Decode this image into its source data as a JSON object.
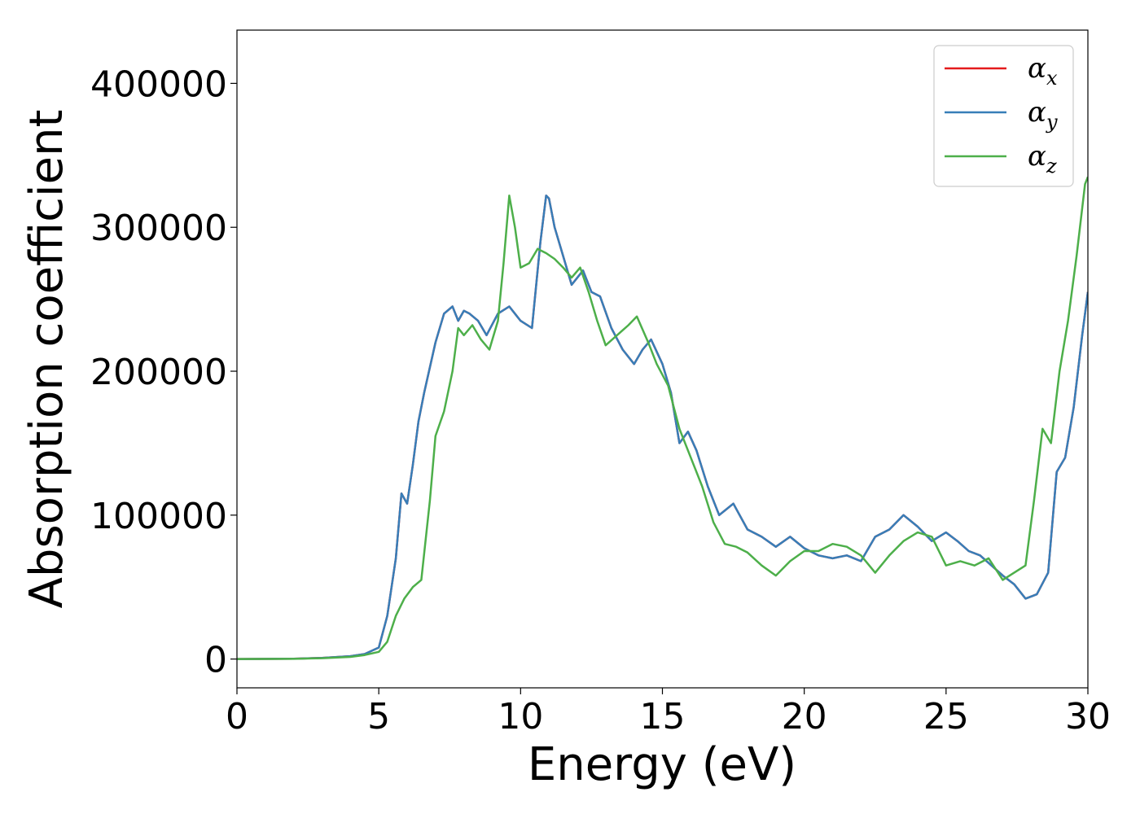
{
  "chart_data": {
    "type": "line",
    "title": "",
    "xlabel": "Energy (eV)",
    "ylabel": "Absorption coefficient",
    "xlim": [
      0,
      30
    ],
    "ylim": [
      -20000,
      437000
    ],
    "xticks": [
      0,
      5,
      10,
      15,
      20,
      25,
      30
    ],
    "xtick_labels": [
      "0",
      "5",
      "10",
      "15",
      "20",
      "25",
      "30"
    ],
    "yticks": [
      0,
      100000,
      200000,
      300000,
      400000
    ],
    "ytick_labels": [
      "0",
      "100000",
      "200000",
      "300000",
      "400000"
    ],
    "grid": false,
    "legend_position": "top-right",
    "series": [
      {
        "name": "α",
        "subscript": "x",
        "color": "#e41a1c",
        "x": [
          0,
          2,
          3,
          4,
          4.5,
          5,
          5.3,
          5.6,
          5.8,
          6.0,
          6.2,
          6.4,
          6.6,
          7.0,
          7.3,
          7.6,
          7.8,
          8.0,
          8.2,
          8.5,
          8.8,
          9.2,
          9.6,
          10.0,
          10.4,
          10.7,
          10.9,
          11.0,
          11.2,
          11.5,
          11.8,
          12.2,
          12.5,
          12.8,
          13.2,
          13.6,
          14.0,
          14.3,
          14.6,
          15.0,
          15.3,
          15.6,
          15.9,
          16.2,
          16.6,
          17.0,
          17.5,
          18.0,
          18.5,
          19.0,
          19.5,
          20.0,
          20.5,
          21.0,
          21.5,
          22.0,
          22.5,
          23.0,
          23.5,
          24.0,
          24.5,
          25.0,
          25.4,
          25.8,
          26.2,
          26.6,
          27.0,
          27.4,
          27.8,
          28.2,
          28.6,
          28.9,
          29.2,
          29.5,
          29.8,
          30.0
        ],
        "y": [
          0,
          200,
          800,
          2000,
          3500,
          8000,
          30000,
          70000,
          115000,
          108000,
          135000,
          165000,
          185000,
          220000,
          240000,
          245000,
          235000,
          242000,
          240000,
          235000,
          225000,
          240000,
          245000,
          235000,
          230000,
          290000,
          322000,
          320000,
          300000,
          280000,
          260000,
          270000,
          255000,
          252000,
          230000,
          215000,
          205000,
          215000,
          222000,
          205000,
          185000,
          150000,
          158000,
          145000,
          120000,
          100000,
          108000,
          90000,
          85000,
          78000,
          85000,
          77000,
          72000,
          70000,
          72000,
          68000,
          85000,
          90000,
          100000,
          92000,
          82000,
          88000,
          82000,
          75000,
          72000,
          65000,
          58000,
          52000,
          42000,
          45000,
          60000,
          130000,
          140000,
          175000,
          225000,
          255000
        ]
      },
      {
        "name": "α",
        "subscript": "y",
        "color": "#377eb8",
        "x": [
          0,
          2,
          3,
          4,
          4.5,
          5,
          5.3,
          5.6,
          5.8,
          6.0,
          6.2,
          6.4,
          6.6,
          7.0,
          7.3,
          7.6,
          7.8,
          8.0,
          8.2,
          8.5,
          8.8,
          9.2,
          9.6,
          10.0,
          10.4,
          10.7,
          10.9,
          11.0,
          11.2,
          11.5,
          11.8,
          12.2,
          12.5,
          12.8,
          13.2,
          13.6,
          14.0,
          14.3,
          14.6,
          15.0,
          15.3,
          15.6,
          15.9,
          16.2,
          16.6,
          17.0,
          17.5,
          18.0,
          18.5,
          19.0,
          19.5,
          20.0,
          20.5,
          21.0,
          21.5,
          22.0,
          22.5,
          23.0,
          23.5,
          24.0,
          24.5,
          25.0,
          25.4,
          25.8,
          26.2,
          26.6,
          27.0,
          27.4,
          27.8,
          28.2,
          28.6,
          28.9,
          29.2,
          29.5,
          29.8,
          30.0
        ],
        "y": [
          0,
          200,
          800,
          2000,
          3500,
          8000,
          30000,
          70000,
          115000,
          108000,
          135000,
          165000,
          185000,
          220000,
          240000,
          245000,
          235000,
          242000,
          240000,
          235000,
          225000,
          240000,
          245000,
          235000,
          230000,
          290000,
          322000,
          320000,
          300000,
          280000,
          260000,
          270000,
          255000,
          252000,
          230000,
          215000,
          205000,
          215000,
          222000,
          205000,
          185000,
          150000,
          158000,
          145000,
          120000,
          100000,
          108000,
          90000,
          85000,
          78000,
          85000,
          77000,
          72000,
          70000,
          72000,
          68000,
          85000,
          90000,
          100000,
          92000,
          82000,
          88000,
          82000,
          75000,
          72000,
          65000,
          58000,
          52000,
          42000,
          45000,
          60000,
          130000,
          140000,
          175000,
          225000,
          255000
        ]
      },
      {
        "name": "α",
        "subscript": "z",
        "color": "#4daf4a",
        "x": [
          0,
          2,
          3,
          4,
          4.5,
          5,
          5.3,
          5.6,
          5.9,
          6.2,
          6.5,
          6.8,
          7.0,
          7.3,
          7.6,
          7.8,
          8.0,
          8.3,
          8.6,
          8.9,
          9.2,
          9.4,
          9.6,
          9.8,
          10.0,
          10.3,
          10.6,
          10.9,
          11.2,
          11.5,
          11.8,
          12.1,
          12.4,
          12.7,
          13.0,
          13.4,
          13.8,
          14.1,
          14.5,
          14.8,
          15.2,
          15.6,
          16.0,
          16.4,
          16.8,
          17.2,
          17.6,
          18.0,
          18.5,
          19.0,
          19.5,
          20.0,
          20.5,
          21.0,
          21.5,
          22.0,
          22.5,
          23.0,
          23.5,
          24.0,
          24.5,
          25.0,
          25.5,
          26.0,
          26.5,
          27.0,
          27.4,
          27.8,
          28.1,
          28.4,
          28.7,
          29.0,
          29.3,
          29.6,
          29.9,
          30.0
        ],
        "y": [
          0,
          150,
          600,
          1500,
          2800,
          5000,
          12000,
          30000,
          42000,
          50000,
          55000,
          110000,
          155000,
          172000,
          200000,
          230000,
          225000,
          232000,
          222000,
          215000,
          235000,
          275000,
          322000,
          300000,
          272000,
          275000,
          285000,
          282000,
          278000,
          272000,
          265000,
          272000,
          255000,
          235000,
          218000,
          225000,
          232000,
          238000,
          220000,
          205000,
          190000,
          160000,
          140000,
          120000,
          95000,
          80000,
          78000,
          74000,
          65000,
          58000,
          68000,
          75000,
          75000,
          80000,
          78000,
          72000,
          60000,
          72000,
          82000,
          88000,
          85000,
          65000,
          68000,
          65000,
          70000,
          55000,
          60000,
          65000,
          110000,
          160000,
          150000,
          200000,
          235000,
          280000,
          330000,
          335000
        ]
      }
    ]
  }
}
